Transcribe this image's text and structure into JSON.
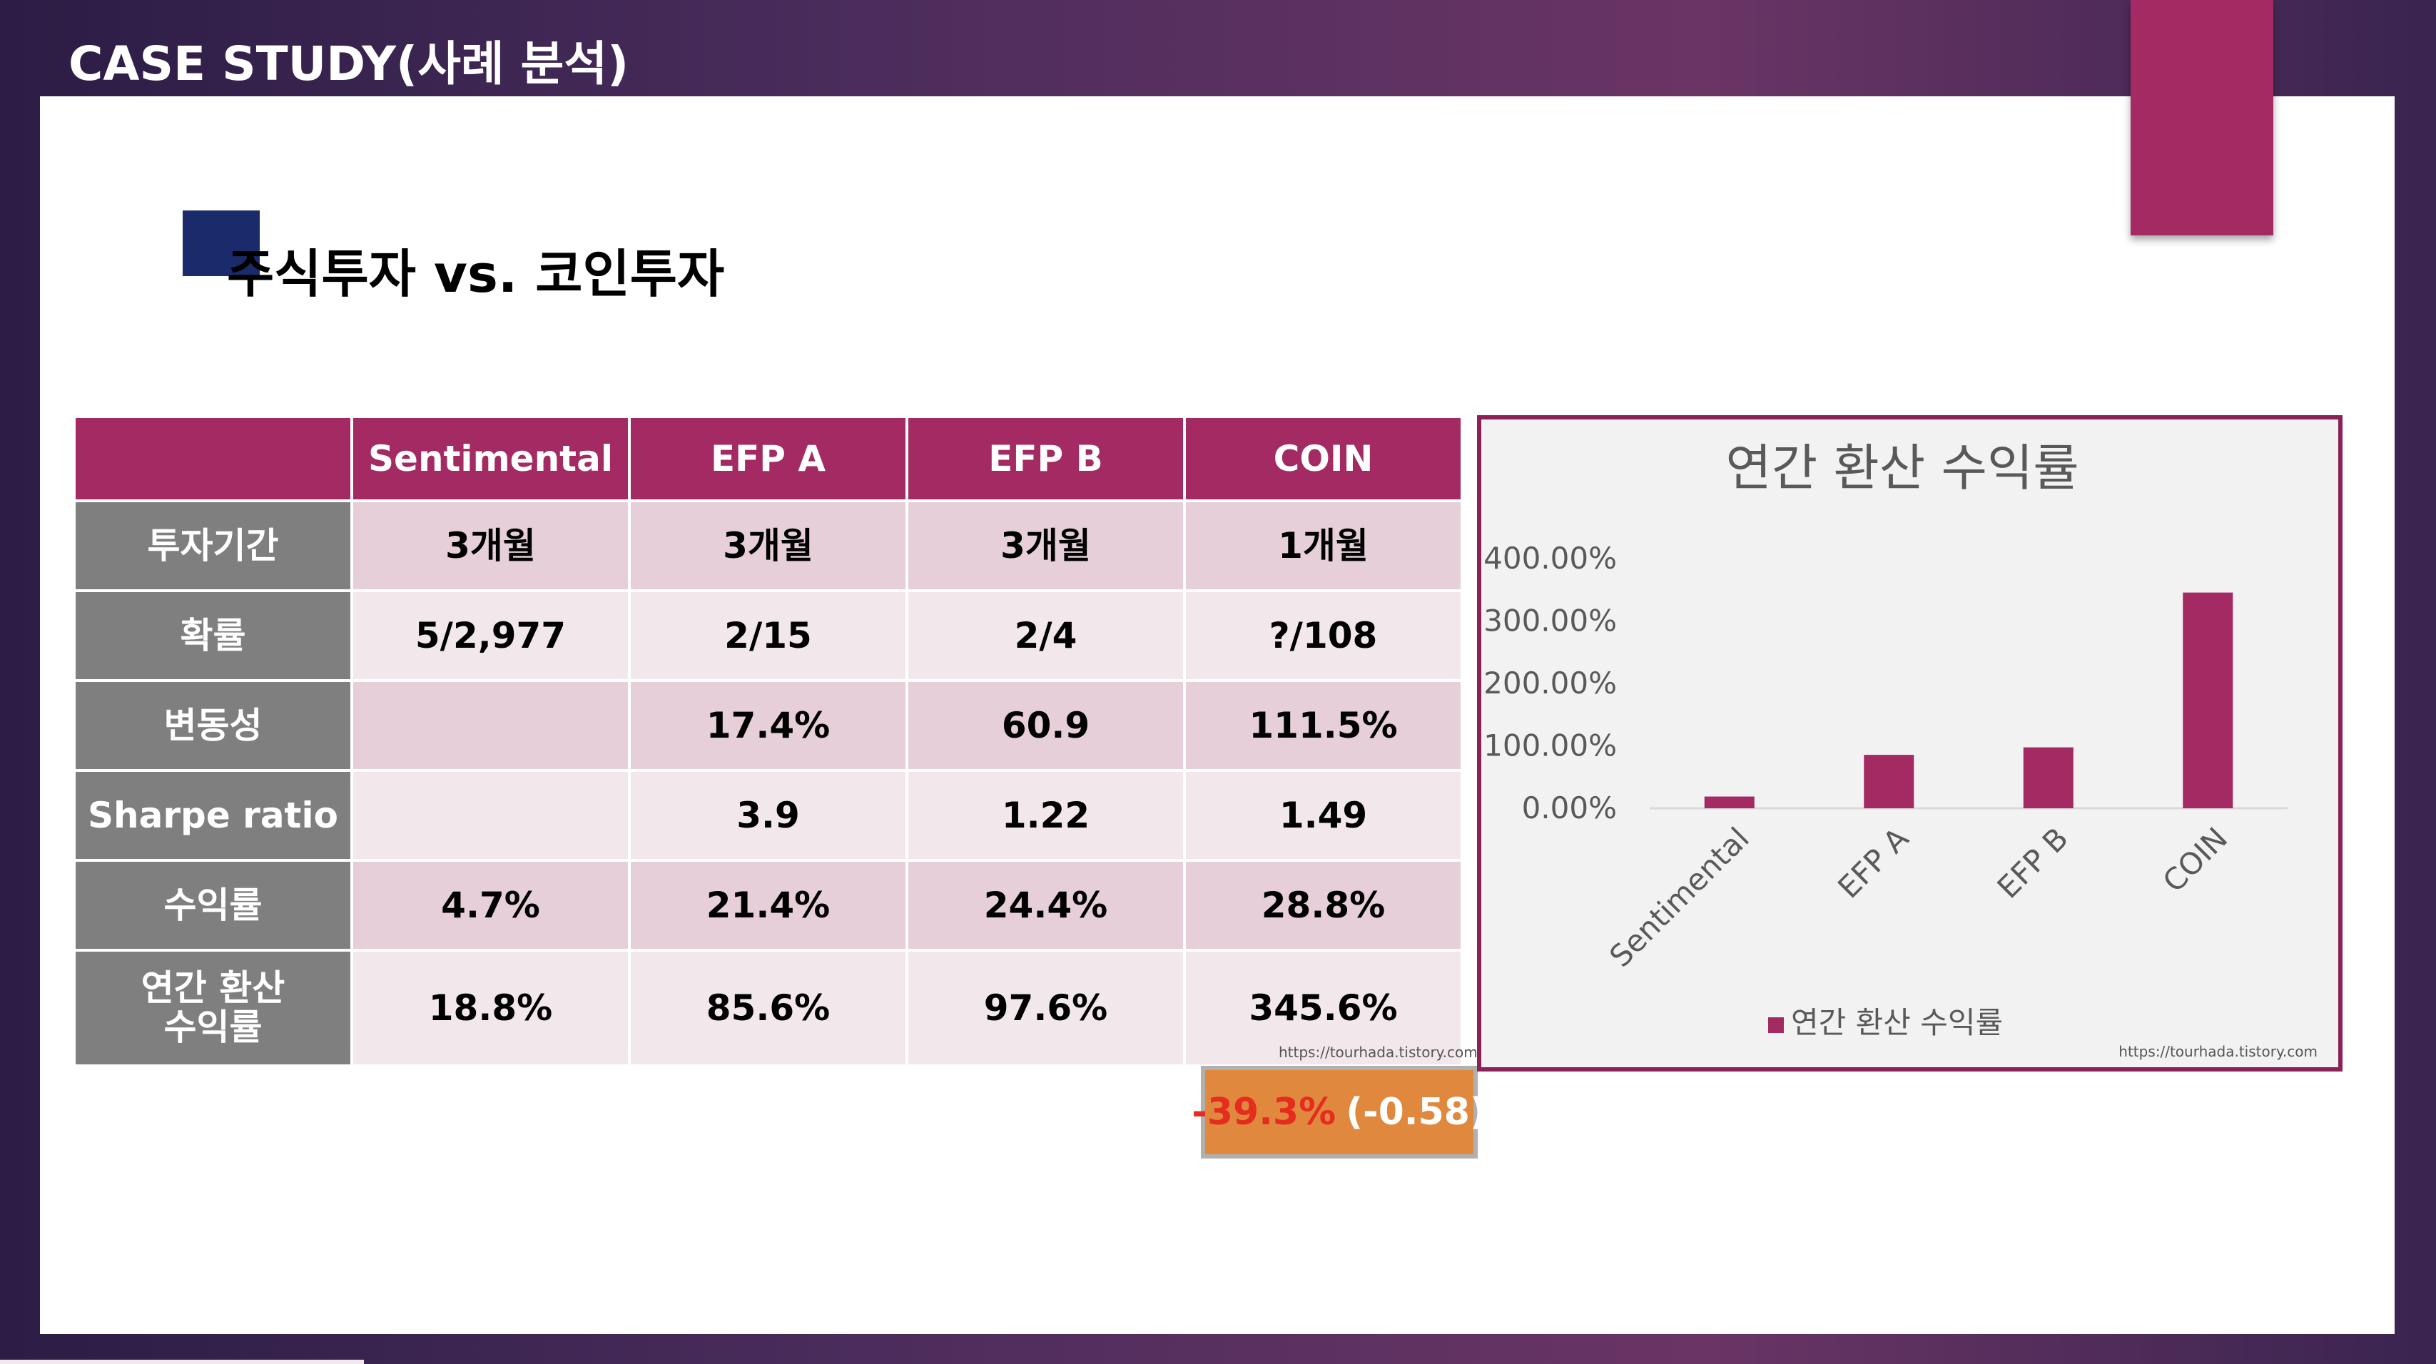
{
  "header": {
    "title": "CASE STUDY(사례 분석)"
  },
  "slide": {
    "heading": "주식투자 vs. 코인투자"
  },
  "table": {
    "columns": [
      "",
      "Sentimental",
      "EFP A",
      "EFP B",
      "COIN"
    ],
    "rows": [
      {
        "label": "투자기간",
        "values": [
          "3개월",
          "3개월",
          "3개월",
          "1개월"
        ]
      },
      {
        "label": "확률",
        "values": [
          "5/2,977",
          "2/15",
          "2/4",
          "?/108"
        ]
      },
      {
        "label": "변동성",
        "values": [
          "",
          "17.4%",
          "60.9",
          "111.5%"
        ]
      },
      {
        "label": "Sharpe ratio",
        "values": [
          "",
          "3.9",
          "1.22",
          "1.49"
        ]
      },
      {
        "label": "수익률",
        "values": [
          "4.7%",
          "21.4%",
          "24.4%",
          "28.8%"
        ]
      },
      {
        "label": "연간 환산\n수익률",
        "values": [
          "18.8%",
          "85.6%",
          "97.6%",
          "345.6%"
        ]
      }
    ],
    "credit": "https://tourhada.tistory.com"
  },
  "note": {
    "negative": "-39.3%",
    "paren": "(-0.58)"
  },
  "chart_data": {
    "type": "bar",
    "title": "연간 환산 수익률",
    "categories": [
      "Sentimental",
      "EFP A",
      "EFP B",
      "COIN"
    ],
    "series": [
      {
        "name": "연간 환산 수익률",
        "values": [
          18.8,
          85.6,
          97.6,
          345.6
        ],
        "color": "#a42a63"
      }
    ],
    "yticks": [
      "400.00%",
      "300.00%",
      "200.00%",
      "100.00%",
      "0.00%"
    ],
    "ylim": [
      0,
      400
    ],
    "legend": "bottom",
    "grid": false,
    "credit": "https://tourhada.tistory.com"
  },
  "colors": {
    "accent": "#a42a63",
    "navy": "#1b2a6b",
    "rowhead": "#7f7f7f"
  }
}
